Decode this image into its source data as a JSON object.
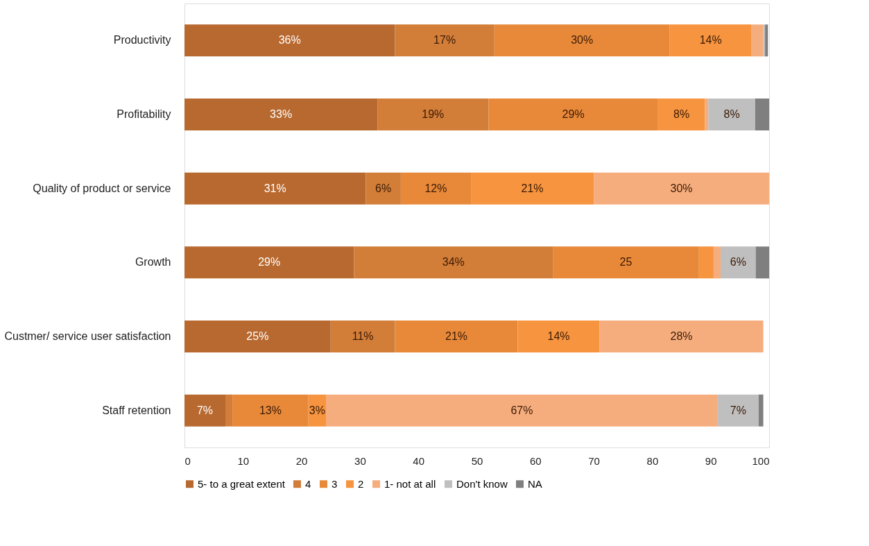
{
  "chart_data": {
    "type": "bar",
    "orientation": "horizontal",
    "stacked": true,
    "categories": [
      "Productivity",
      "Profitability",
      "Quality of product or service",
      "Growth",
      "Custmer/ service user satisfaction",
      "Staff retention"
    ],
    "series": [
      {
        "name": "5- to a great extent",
        "color": "#b8692f",
        "values": [
          36,
          33,
          31,
          29,
          25,
          7
        ],
        "value_labels": [
          "36%",
          "33%",
          "31%",
          "29%",
          "25%",
          "7%"
        ]
      },
      {
        "name": "4",
        "color": "#d27d38",
        "values": [
          17,
          19,
          6,
          34,
          11,
          1.2
        ],
        "value_labels": [
          "17%",
          "19%",
          "6%",
          "34%",
          "11%",
          null
        ]
      },
      {
        "name": "3",
        "color": "#e8893a",
        "values": [
          30,
          29,
          12,
          25,
          21,
          13
        ],
        "value_labels": [
          "30%",
          "29%",
          "12%",
          "25",
          "21%",
          "13%"
        ]
      },
      {
        "name": "2",
        "color": "#f7943f",
        "values": [
          14,
          8,
          21,
          2.5,
          14,
          3
        ],
        "value_labels": [
          "14%",
          "8%",
          "21%",
          null,
          "14%",
          "3%"
        ]
      },
      {
        "name": "1- not at all",
        "color": "#f6ad7d",
        "values": [
          2,
          0.6,
          30,
          1.2,
          28,
          67
        ],
        "value_labels": [
          null,
          null,
          "30%",
          null,
          "28%",
          "67%"
        ]
      },
      {
        "name": "Don't know",
        "color": "#bfbfbf",
        "values": [
          0.3,
          8,
          null,
          6,
          null,
          7
        ],
        "value_labels": [
          null,
          "8%",
          null,
          "6%",
          null,
          "7%"
        ]
      },
      {
        "name": "NA",
        "color": "#7f7f7f",
        "values": [
          0.5,
          2.4,
          null,
          2.3,
          null,
          0.8
        ],
        "value_labels": [
          null,
          null,
          null,
          null,
          null,
          null
        ]
      }
    ],
    "xlim": [
      0,
      100
    ],
    "xticks": [
      0,
      10,
      20,
      30,
      40,
      50,
      60,
      70,
      80,
      90,
      100
    ],
    "grid": false,
    "legend": "bottom"
  }
}
